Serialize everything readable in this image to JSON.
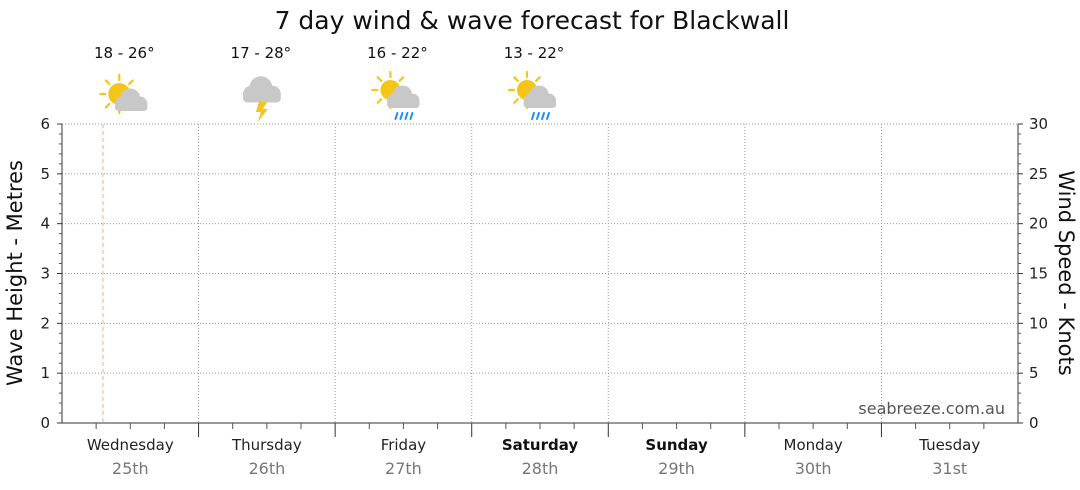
{
  "chart_data": {
    "type": "line",
    "title": "7 day wind & wave forecast for Blackwall",
    "y_left": {
      "label": "Wave Height - Metres",
      "ylim": [
        0,
        6
      ],
      "ticks": [
        "0",
        "1",
        "2",
        "3",
        "4",
        "5",
        "6"
      ]
    },
    "y_right": {
      "label": "Wind Speed - Knots",
      "ylim": [
        0,
        30
      ],
      "ticks": [
        "0",
        "5",
        "10",
        "15",
        "20",
        "25",
        "30"
      ]
    },
    "days": [
      {
        "name": "Wednesday",
        "date": "25th",
        "bold": false,
        "temp": "18 - 26°",
        "icon": "partly-cloudy-icon"
      },
      {
        "name": "Thursday",
        "date": "26th",
        "bold": false,
        "temp": "17 - 28°",
        "icon": "storm-icon"
      },
      {
        "name": "Friday",
        "date": "27th",
        "bold": false,
        "temp": "16 - 22°",
        "icon": "showers-icon"
      },
      {
        "name": "Saturday",
        "date": "28th",
        "bold": true,
        "temp": "13 - 22°",
        "icon": "showers-icon"
      },
      {
        "name": "Sunday",
        "date": "29th",
        "bold": true,
        "temp": "",
        "icon": ""
      },
      {
        "name": "Monday",
        "date": "30th",
        "bold": false,
        "temp": "",
        "icon": ""
      },
      {
        "name": "Tuesday",
        "date": "31st",
        "bold": false,
        "temp": "",
        "icon": ""
      }
    ],
    "now_marker_day_fraction": 0.3,
    "grid": true,
    "series": [],
    "colors": {
      "now_marker": "#f4a3a3",
      "grid": "#999999",
      "sun": "#f5c518",
      "cloud": "#c8c8c8",
      "rain": "#1e90ff",
      "bolt": "#f5c518"
    }
  },
  "brand": "seabreeze.com.au"
}
